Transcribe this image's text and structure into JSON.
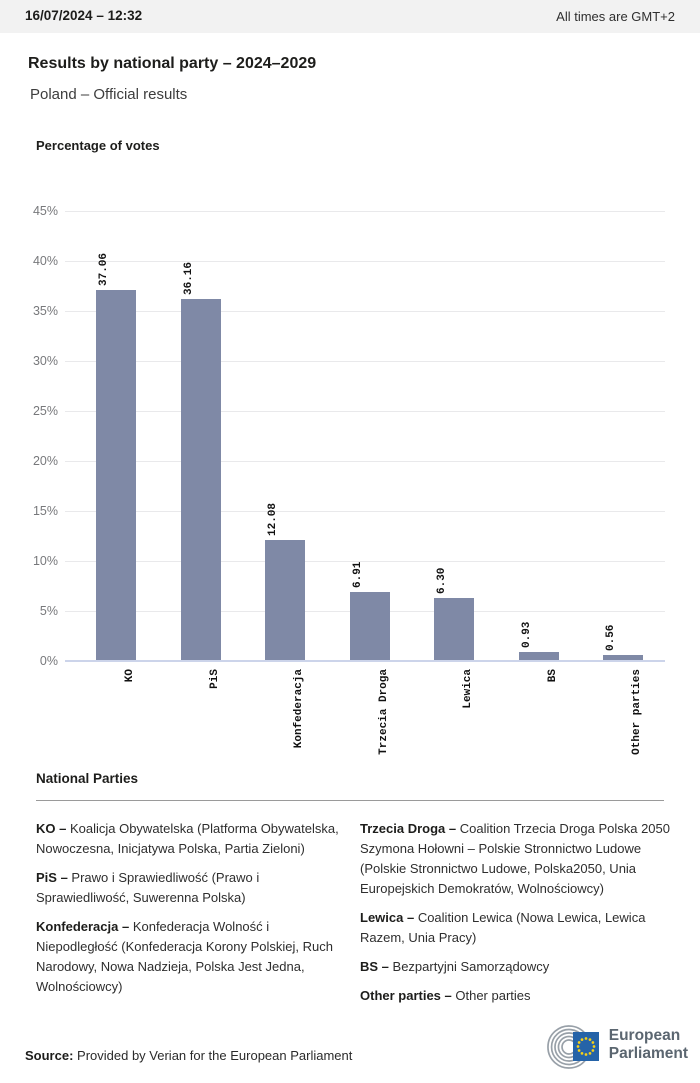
{
  "header": {
    "datetime": "16/07/2024 – 12:32",
    "timezone_note": "All times are GMT+2"
  },
  "title": "Results by national party – 2024–2029",
  "subtitle": "Poland – Official results",
  "chart_data": {
    "type": "bar",
    "orientation": "vertical",
    "title": "Percentage of votes",
    "categories": [
      "KO",
      "PiS",
      "Konfederacja",
      "Trzecia Droga",
      "Lewica",
      "BS",
      "Other parties"
    ],
    "values": [
      37.06,
      36.16,
      12.08,
      6.91,
      6.3,
      0.93,
      0.56
    ],
    "value_labels": [
      "37.06",
      "36.16",
      "12.08",
      "6.91",
      "6.30",
      "0.93",
      "0.56"
    ],
    "xlabel": "",
    "ylabel": "Percentage of votes",
    "ylim": [
      0,
      45
    ],
    "ytick_step": 5,
    "ytick_labels": [
      "0%",
      "5%",
      "10%",
      "15%",
      "20%",
      "25%",
      "30%",
      "35%",
      "40%",
      "45%"
    ],
    "grid": true,
    "legend": false
  },
  "national_parties": {
    "heading": "National Parties",
    "columns": [
      {
        "entries": [
          {
            "label": "KO –",
            "desc": "Koalicja Obywatelska (Platforma Obywatelska, Nowoczesna, Inicjatywa Polska, Partia Zieloni)"
          },
          {
            "label": "PiS –",
            "desc": "Prawo i Sprawiedliwość (Prawo i Sprawiedliwość, Suwerenna Polska)"
          },
          {
            "label": "Konfederacja –",
            "desc": "Konfederacja Wolność i Niepodległość (Konfederacja Korony Polskiej, Ruch Narodowy, Nowa Nadzieja, Polska Jest Jedna, Wolnościowcy)"
          }
        ]
      },
      {
        "entries": [
          {
            "label": "Trzecia Droga –",
            "desc": "Coalition Trzecia Droga Polska 2050 Szymona Hołowni – Polskie Stronnictwo Ludowe (Polskie Stronnictwo Ludowe, Polska2050, Unia Europejskich Demokratów, Wolnościowcy)"
          },
          {
            "label": "Lewica –",
            "desc": "Coalition Lewica (Nowa Lewica, Lewica Razem, Unia Pracy)"
          },
          {
            "label": "BS –",
            "desc": "Bezpartyjni Samorządowcy"
          },
          {
            "label": "Other parties –",
            "desc": "Other parties"
          }
        ]
      }
    ]
  },
  "footer": {
    "source_label": "Source:",
    "source_text": "Provided by Verian for the European Parliament",
    "logo_line1": "European",
    "logo_line2": "Parliament"
  },
  "colors": {
    "bar-color": "#7f89a6",
    "axis-line": "#ccd4ea",
    "grid-line": "#e9e9eb",
    "topbar-bg": "#f2f2f2",
    "flag-blue": "#2563a8",
    "star-yellow": "#f7d117",
    "hemicycle-gray": "#98a0a8",
    "logo-text-gray": "#5b6670"
  }
}
